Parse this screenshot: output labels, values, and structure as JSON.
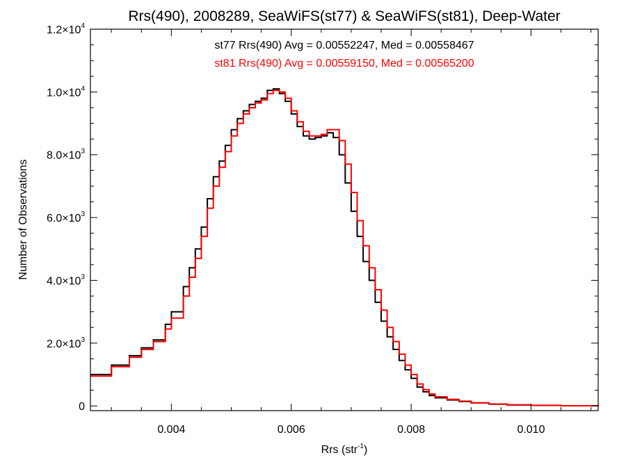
{
  "chart_data": {
    "type": "line",
    "title": "Rrs(490), 2008289, SeaWiFS(st77) & SeaWiFS(st81), Deep-Water",
    "xlabel_main": "Rrs (str",
    "xlabel_sup": "-1",
    "xlabel_end": ")",
    "ylabel": "Number of Observations",
    "xlim": [
      0.00265,
      0.01112
    ],
    "ylim": [
      -150,
      12000
    ],
    "xticks": [
      {
        "value": 0.004,
        "label": "0.004"
      },
      {
        "value": 0.006,
        "label": "0.006"
      },
      {
        "value": 0.008,
        "label": "0.008"
      },
      {
        "value": 0.01,
        "label": "0.010"
      }
    ],
    "yticks": [
      {
        "value": 0,
        "mant": "0",
        "exp": ""
      },
      {
        "value": 2000,
        "mant": "2.0×10",
        "exp": "3"
      },
      {
        "value": 4000,
        "mant": "4.0×10",
        "exp": "3"
      },
      {
        "value": 6000,
        "mant": "6.0×10",
        "exp": "3"
      },
      {
        "value": 8000,
        "mant": "8.0×10",
        "exp": "3"
      },
      {
        "value": 10000,
        "mant": "1.0×10",
        "exp": "4"
      },
      {
        "value": 12000,
        "mant": "1.2×10",
        "exp": "4"
      }
    ],
    "annotations": [
      {
        "text": "st77 Rrs(490) Avg = 0.00552247, Med = 0.00558467",
        "color": "#000000"
      },
      {
        "text": "st81 Rrs(490) Avg = 0.00559150, Med = 0.00565200",
        "color": "#ff0000"
      }
    ],
    "series": [
      {
        "name": "st77",
        "color": "#000000",
        "x": [
          0.00265,
          0.003,
          0.0033,
          0.0035,
          0.0037,
          0.0039,
          0.004,
          0.0042,
          0.0043,
          0.0044,
          0.0045,
          0.0046,
          0.0047,
          0.0048,
          0.0049,
          0.005,
          0.0051,
          0.0052,
          0.0053,
          0.0054,
          0.0055,
          0.0056,
          0.0057,
          0.0058,
          0.0059,
          0.006,
          0.0061,
          0.0062,
          0.0063,
          0.0064,
          0.0065,
          0.0066,
          0.0067,
          0.0068,
          0.0069,
          0.007,
          0.0071,
          0.0072,
          0.0073,
          0.0074,
          0.0075,
          0.0076,
          0.0077,
          0.0078,
          0.0079,
          0.008,
          0.0081,
          0.0082,
          0.0083,
          0.0084,
          0.0086,
          0.0088,
          0.009,
          0.0093,
          0.0096,
          0.01,
          0.0105,
          0.01112
        ],
        "y": [
          1000,
          1300,
          1600,
          1850,
          2100,
          2600,
          3000,
          3800,
          4400,
          5000,
          5700,
          6600,
          7300,
          7800,
          8300,
          8800,
          9150,
          9400,
          9600,
          9700,
          9800,
          10050,
          10100,
          9950,
          9700,
          9300,
          8900,
          8600,
          8500,
          8550,
          8600,
          8700,
          8550,
          8000,
          7100,
          6200,
          5400,
          4600,
          4000,
          3300,
          2700,
          2200,
          1800,
          1450,
          1150,
          880,
          600,
          450,
          330,
          260,
          190,
          140,
          95,
          55,
          30,
          15,
          5,
          0
        ]
      },
      {
        "name": "st81",
        "color": "#ff0000",
        "x": [
          0.00265,
          0.003,
          0.0033,
          0.0035,
          0.0037,
          0.0039,
          0.004,
          0.0042,
          0.0043,
          0.0044,
          0.0045,
          0.0046,
          0.0047,
          0.0048,
          0.0049,
          0.005,
          0.0051,
          0.0052,
          0.0053,
          0.0054,
          0.0055,
          0.0056,
          0.0057,
          0.0058,
          0.0059,
          0.006,
          0.0061,
          0.0062,
          0.0063,
          0.0064,
          0.0065,
          0.0066,
          0.0067,
          0.0068,
          0.0069,
          0.007,
          0.0071,
          0.0072,
          0.0073,
          0.0074,
          0.0075,
          0.0076,
          0.0077,
          0.0078,
          0.0079,
          0.008,
          0.0081,
          0.0082,
          0.0083,
          0.0084,
          0.0086,
          0.0088,
          0.009,
          0.0093,
          0.0096,
          0.01,
          0.0105,
          0.01112
        ],
        "y": [
          950,
          1250,
          1550,
          1800,
          2050,
          2450,
          2800,
          3500,
          4100,
          4700,
          5400,
          6300,
          7000,
          7600,
          8100,
          8600,
          9000,
          9300,
          9500,
          9650,
          9750,
          9950,
          10050,
          10000,
          9800,
          9400,
          9050,
          8750,
          8600,
          8600,
          8650,
          8800,
          8800,
          8450,
          7700,
          6800,
          5900,
          5100,
          4400,
          3700,
          3050,
          2500,
          2050,
          1650,
          1300,
          1000,
          700,
          520,
          380,
          290,
          210,
          150,
          100,
          60,
          35,
          18,
          6,
          0
        ]
      }
    ]
  }
}
